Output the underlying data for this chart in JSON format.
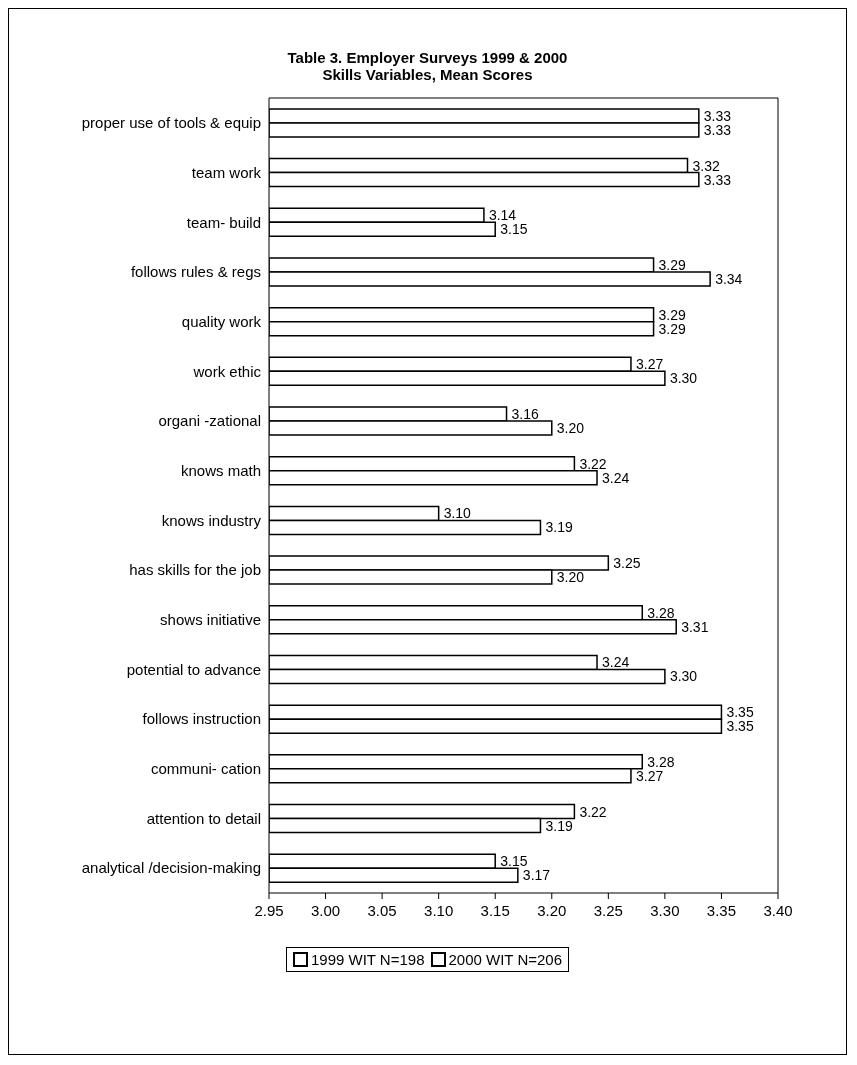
{
  "chart_data": {
    "type": "bar",
    "orientation": "horizontal",
    "title": "Table 3. Employer Surveys 1999 & 2000",
    "subtitle": "Skills Variables, Mean Scores",
    "categories": [
      "proper use of tools & equip",
      "team work",
      "team- build",
      "follows rules & regs",
      "quality work",
      "work ethic",
      "organi -zational",
      "knows math",
      "knows industry",
      "has skills for the job",
      "shows initiative",
      "potential to advance",
      "follows instruction",
      "communi- cation",
      "attention to detail",
      "analytical /decision-making"
    ],
    "series": [
      {
        "name": "1999 WIT N=198",
        "color": "#ffffff",
        "values": [
          3.33,
          3.32,
          3.14,
          3.29,
          3.29,
          3.27,
          3.16,
          3.22,
          3.1,
          3.25,
          3.28,
          3.24,
          3.35,
          3.28,
          3.22,
          3.15
        ],
        "value_labels": [
          "3.33",
          "3.32",
          "3.14",
          "3.29",
          "3.29",
          "3.27",
          "3.16",
          "3.22",
          "3.10",
          "3.25",
          "3.28",
          "3.24",
          "3.35",
          "3.28",
          "3.22",
          "3.15"
        ]
      },
      {
        "name": "2000 WIT N=206",
        "color": "#ffffff",
        "values": [
          3.33,
          3.33,
          3.15,
          3.34,
          3.29,
          3.3,
          3.2,
          3.24,
          3.19,
          3.2,
          3.31,
          3.3,
          3.35,
          3.27,
          3.19,
          3.17
        ],
        "value_labels": [
          "3.33",
          "3.33",
          "3.15",
          "3.34",
          "3.29",
          "3.30",
          "3.20",
          "3.24",
          "3.19",
          "3.20",
          "3.31",
          "3.30",
          "3.35",
          "3.27",
          "3.19",
          "3.17"
        ]
      }
    ],
    "xlim": [
      2.95,
      3.4
    ],
    "xticks": [
      2.95,
      {
        "value": 3.0,
        "label": "3.00"
      },
      3.05,
      {
        "value": 3.1,
        "label": "3.10"
      },
      3.15,
      {
        "value": 3.2,
        "label": "3.20"
      },
      3.25,
      {
        "value": 3.3,
        "label": "3.30"
      },
      3.35,
      {
        "value": 3.4,
        "label": "3.40"
      }
    ],
    "grid": false,
    "legend": "bottom"
  }
}
